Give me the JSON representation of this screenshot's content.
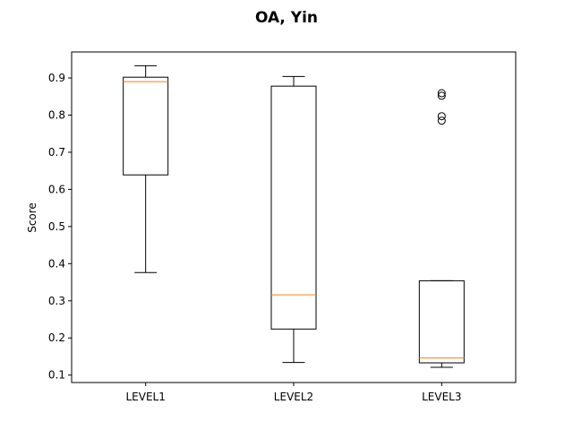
{
  "chart_data": {
    "type": "box",
    "title": "OA, Yin",
    "xlabel": "",
    "ylabel": "Score",
    "ylim": [
      0.08,
      0.97
    ],
    "yticks": [
      0.1,
      0.2,
      0.3,
      0.4,
      0.5,
      0.6,
      0.7,
      0.8,
      0.9
    ],
    "ytick_labels": [
      "0.1",
      "0.2",
      "0.3",
      "0.4",
      "0.5",
      "0.6",
      "0.7",
      "0.8",
      "0.9"
    ],
    "grid": false,
    "colors": {
      "box": "#000000",
      "median": "#ff7f0e",
      "whisker": "#000000",
      "flier": "#000000"
    },
    "categories": [
      "LEVEL1",
      "LEVEL2",
      "LEVEL3"
    ],
    "boxes": [
      {
        "category": "LEVEL1",
        "whislo": 0.376,
        "q1": 0.639,
        "median": 0.89,
        "q3": 0.902,
        "whishi": 0.933,
        "fliers": []
      },
      {
        "category": "LEVEL2",
        "whislo": 0.134,
        "q1": 0.224,
        "median": 0.316,
        "q3": 0.878,
        "whishi": 0.904,
        "fliers": []
      },
      {
        "category": "LEVEL3",
        "whislo": 0.121,
        "q1": 0.133,
        "median": 0.146,
        "q3": 0.354,
        "whishi": 0.354,
        "fliers": [
          0.785,
          0.797,
          0.852,
          0.859
        ]
      }
    ]
  }
}
